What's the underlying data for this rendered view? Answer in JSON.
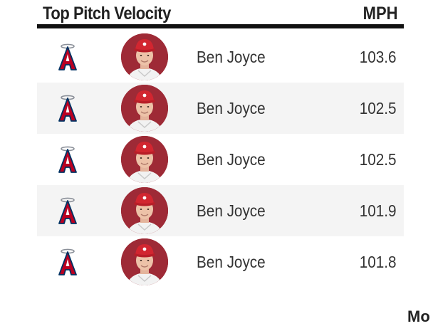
{
  "header": {
    "title": "Top Pitch Velocity",
    "unit": "MPH"
  },
  "team": {
    "logo_icon": "angels-logo-icon",
    "logo_color": "#BA0021",
    "logo_dark": "#003263"
  },
  "rows": [
    {
      "player": "Ben Joyce",
      "velocity": "103.6"
    },
    {
      "player": "Ben Joyce",
      "velocity": "102.5"
    },
    {
      "player": "Ben Joyce",
      "velocity": "102.5"
    },
    {
      "player": "Ben Joyce",
      "velocity": "101.9"
    },
    {
      "player": "Ben Joyce",
      "velocity": "101.8"
    }
  ],
  "colors": {
    "alt_row": "#f4f4f4",
    "headshot_bg": "#9e2a36",
    "cap": "#d22630"
  },
  "footer": {
    "cut_off_text": "Mo"
  }
}
